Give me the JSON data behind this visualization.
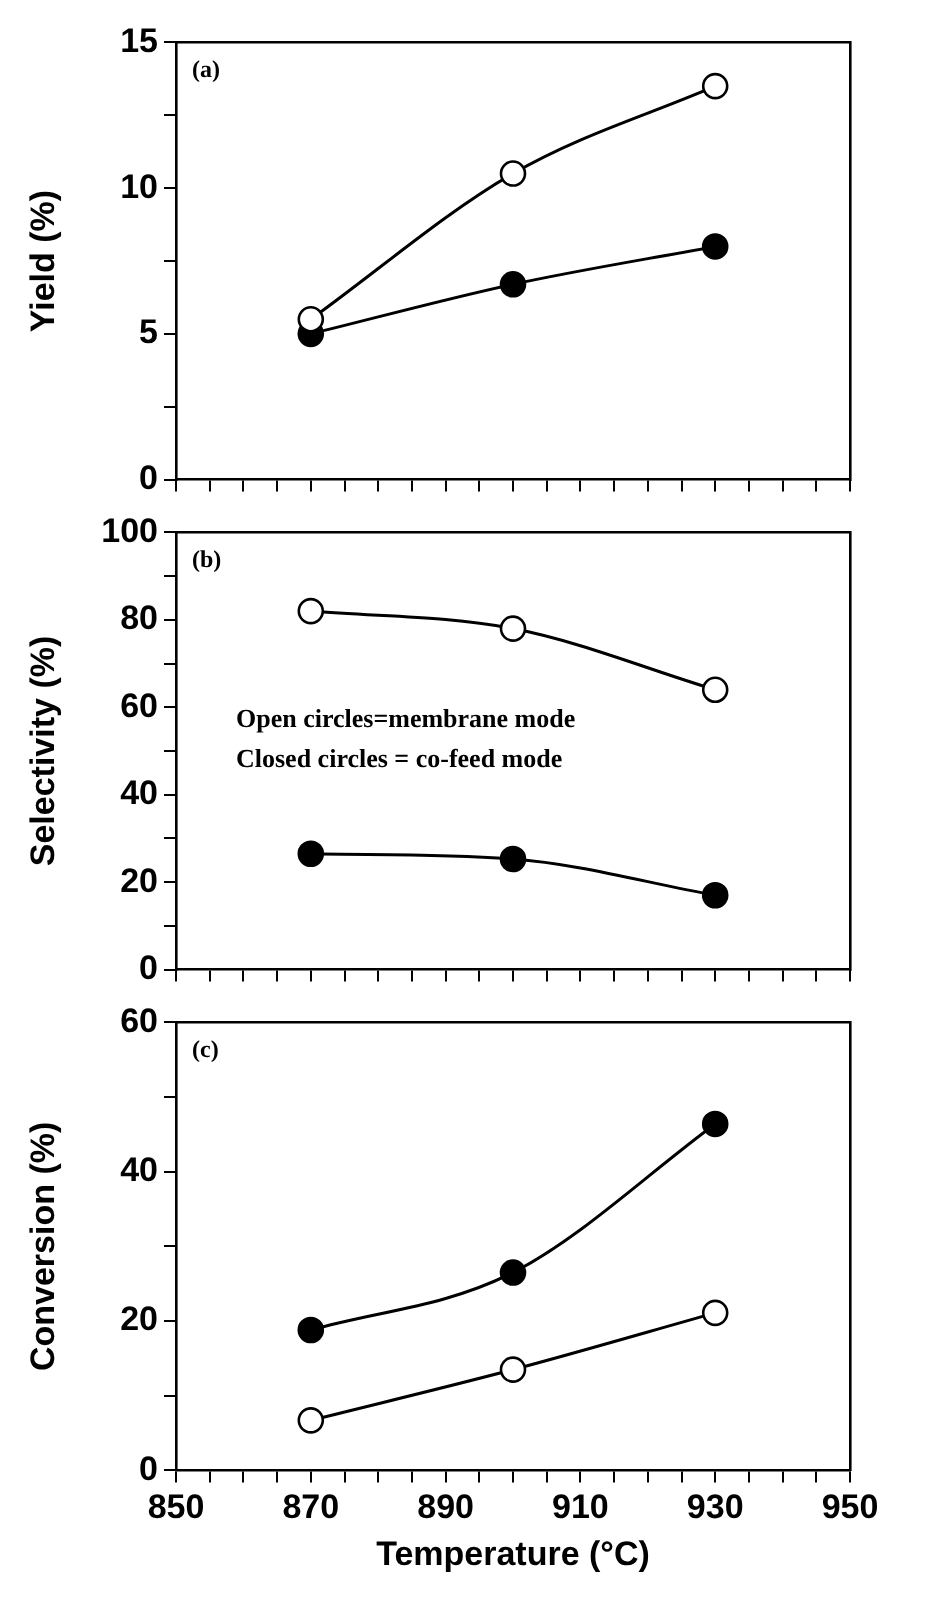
{
  "chart_data": [
    {
      "type": "line",
      "ylabel": "Yield (%)",
      "x": [
        870,
        900,
        930
      ],
      "xlim": [
        850,
        950
      ],
      "xticks": [
        {
          "value": 850,
          "label": null
        },
        {
          "value": 855,
          "label": null
        },
        {
          "value": 860,
          "label": null
        },
        {
          "value": 865,
          "label": null
        },
        {
          "value": 870,
          "label": null
        },
        {
          "value": 875,
          "label": null
        },
        {
          "value": 880,
          "label": null
        },
        {
          "value": 885,
          "label": null
        },
        {
          "value": 890,
          "label": null
        },
        {
          "value": 895,
          "label": null
        },
        {
          "value": 900,
          "label": null
        },
        {
          "value": 905,
          "label": null
        },
        {
          "value": 910,
          "label": null
        },
        {
          "value": 915,
          "label": null
        },
        {
          "value": 920,
          "label": null
        },
        {
          "value": 925,
          "label": null
        },
        {
          "value": 930,
          "label": null
        },
        {
          "value": 935,
          "label": null
        },
        {
          "value": 940,
          "label": null
        },
        {
          "value": 945,
          "label": null
        },
        {
          "value": 950,
          "label": null
        }
      ],
      "ylim": [
        0,
        15
      ],
      "yticks": [
        0,
        {
          "value": 2.5,
          "label": null
        },
        5,
        {
          "value": 7.5,
          "label": null
        },
        10,
        {
          "value": 12.5,
          "label": null
        },
        15
      ],
      "tick_labels": "y",
      "marker": "circle",
      "grid": false,
      "legend": false,
      "series": [
        {
          "color": "#000000",
          "values": [
            5.5,
            10.5,
            13.5
          ]
        },
        {
          "color": "#000000",
          "values": [
            5.0,
            6.7,
            8.0
          ]
        }
      ],
      "annotations": [
        "(a)"
      ]
    },
    {
      "type": "line",
      "ylabel": "Selectivity (%)",
      "x": [
        870,
        900,
        930
      ],
      "xlim": [
        850,
        950
      ],
      "xticks": [
        {
          "value": 850,
          "label": null
        },
        {
          "value": 855,
          "label": null
        },
        {
          "value": 860,
          "label": null
        },
        {
          "value": 865,
          "label": null
        },
        {
          "value": 870,
          "label": null
        },
        {
          "value": 875,
          "label": null
        },
        {
          "value": 880,
          "label": null
        },
        {
          "value": 885,
          "label": null
        },
        {
          "value": 890,
          "label": null
        },
        {
          "value": 895,
          "label": null
        },
        {
          "value": 900,
          "label": null
        },
        {
          "value": 905,
          "label": null
        },
        {
          "value": 910,
          "label": null
        },
        {
          "value": 915,
          "label": null
        },
        {
          "value": 920,
          "label": null
        },
        {
          "value": 925,
          "label": null
        },
        {
          "value": 930,
          "label": null
        },
        {
          "value": 935,
          "label": null
        },
        {
          "value": 940,
          "label": null
        },
        {
          "value": 945,
          "label": null
        },
        {
          "value": 950,
          "label": null
        }
      ],
      "ylim": [
        0,
        100
      ],
      "yticks": [
        0,
        {
          "value": 10,
          "label": null
        },
        20,
        {
          "value": 30,
          "label": null
        },
        40,
        {
          "value": 50,
          "label": null
        },
        60,
        {
          "value": 70,
          "label": null
        },
        80,
        {
          "value": 90,
          "label": null
        },
        100
      ],
      "tick_labels": "y",
      "marker": "circle",
      "grid": false,
      "legend": false,
      "series": [
        {
          "color": "#000000",
          "values": [
            82,
            78,
            64
          ]
        },
        {
          "color": "#000000",
          "values": [
            26.5,
            25.3,
            17
          ]
        }
      ],
      "annotations": [
        "(b)",
        "Open circles=membrane mode",
        "Closed circles = co-feed mode"
      ]
    },
    {
      "type": "line",
      "ylabel": "Conversion (%)",
      "xlabel": "Temperature (°C)",
      "x": [
        870,
        900,
        930
      ],
      "xlim": [
        850,
        950
      ],
      "xticks": [
        850,
        {
          "value": 855,
          "label": null
        },
        {
          "value": 860,
          "label": null
        },
        {
          "value": 865,
          "label": null
        },
        870,
        {
          "value": 875,
          "label": null
        },
        {
          "value": 880,
          "label": null
        },
        {
          "value": 885,
          "label": null
        },
        890,
        {
          "value": 895,
          "label": null
        },
        {
          "value": 900,
          "label": null
        },
        {
          "value": 905,
          "label": null
        },
        910,
        {
          "value": 915,
          "label": null
        },
        {
          "value": 920,
          "label": null
        },
        {
          "value": 925,
          "label": null
        },
        930,
        {
          "value": 935,
          "label": null
        },
        {
          "value": 940,
          "label": null
        },
        {
          "value": 945,
          "label": null
        },
        950
      ],
      "ylim": [
        0,
        60
      ],
      "yticks": [
        0,
        {
          "value": 10,
          "label": null
        },
        20,
        {
          "value": 30,
          "label": null
        },
        40,
        {
          "value": 50,
          "label": null
        },
        60
      ],
      "marker": "circle",
      "grid": false,
      "legend": false,
      "series": [
        {
          "color": "#000000",
          "values": [
            6.7,
            13.5,
            21.1
          ]
        },
        {
          "color": "#000000",
          "values": [
            18.8,
            26.5,
            46.4
          ]
        }
      ],
      "annotations": [
        "(c)"
      ]
    }
  ]
}
